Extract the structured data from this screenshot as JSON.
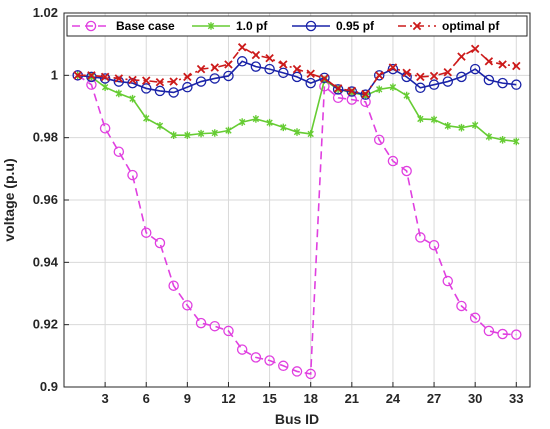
{
  "chart_data": {
    "type": "line",
    "xlabel": "Bus ID",
    "ylabel": "voltage (p.u)",
    "xlim": [
      0,
      34
    ],
    "ylim": [
      0.9,
      1.02
    ],
    "xticks": [
      "3",
      "6",
      "9",
      "12",
      "15",
      "18",
      "21",
      "24",
      "27",
      "30",
      "33"
    ],
    "yticks": [
      "0.9",
      "0.92",
      "0.94",
      "0.96",
      "0.98",
      "1",
      "1.02"
    ],
    "grid": true,
    "legend_position": "top",
    "x": [
      1,
      2,
      3,
      4,
      5,
      6,
      7,
      8,
      9,
      10,
      11,
      12,
      13,
      14,
      15,
      16,
      17,
      18,
      19,
      20,
      21,
      22,
      23,
      24,
      25,
      26,
      27,
      28,
      29,
      30,
      31,
      32,
      33
    ],
    "series": [
      {
        "name": "Base case",
        "color": "#e040e0",
        "dash": "dashed",
        "marker": "circle",
        "values": [
          1.0,
          0.997,
          0.983,
          0.9755,
          0.968,
          0.9495,
          0.9462,
          0.9325,
          0.9262,
          0.9205,
          0.9195,
          0.918,
          0.912,
          0.9095,
          0.9085,
          0.9068,
          0.905,
          0.9042,
          0.9965,
          0.9928,
          0.9922,
          0.9915,
          0.9793,
          0.9725,
          0.9693,
          0.948,
          0.9455,
          0.934,
          0.926,
          0.9222,
          0.918,
          0.917,
          0.9168
        ]
      },
      {
        "name": "1.0 pf",
        "color": "#66cc33",
        "dash": "solid",
        "marker": "asterisk",
        "values": [
          1.0,
          0.9995,
          0.9962,
          0.9942,
          0.9925,
          0.9862,
          0.9838,
          0.9808,
          0.9808,
          0.9813,
          0.9815,
          0.9823,
          0.985,
          0.986,
          0.9848,
          0.9833,
          0.9818,
          0.9812,
          0.9985,
          0.9955,
          0.9945,
          0.9935,
          0.9955,
          0.9962,
          0.9935,
          0.986,
          0.9858,
          0.9838,
          0.9832,
          0.984,
          0.9803,
          0.9793,
          0.9788
        ]
      },
      {
        "name": "0.95 pf",
        "color": "#1a23a8",
        "dash": "solid",
        "marker": "circle",
        "values": [
          1.0,
          0.9995,
          0.999,
          0.998,
          0.9975,
          0.9958,
          0.995,
          0.9945,
          0.9962,
          0.998,
          0.999,
          0.9998,
          1.0045,
          1.0028,
          1.002,
          1.0008,
          0.9995,
          0.9975,
          0.9992,
          0.9955,
          0.9948,
          0.9938,
          1.0,
          1.002,
          0.9995,
          0.996,
          0.997,
          0.998,
          0.9995,
          1.002,
          0.9985,
          0.9975,
          0.997
        ]
      },
      {
        "name": "optimal pf",
        "color": "#cc1a1a",
        "dash": "dashdot",
        "marker": "x",
        "values": [
          1.0,
          1.0,
          0.9995,
          0.999,
          0.9985,
          0.9983,
          0.9978,
          0.998,
          0.9995,
          1.002,
          1.0025,
          1.0035,
          1.009,
          1.0065,
          1.0055,
          1.0035,
          1.002,
          1.0005,
          0.999,
          0.9958,
          0.995,
          0.994,
          1.0,
          1.0025,
          1.0008,
          0.9995,
          0.9998,
          1.001,
          1.006,
          1.0085,
          1.0045,
          1.0035,
          1.003
        ]
      }
    ]
  }
}
